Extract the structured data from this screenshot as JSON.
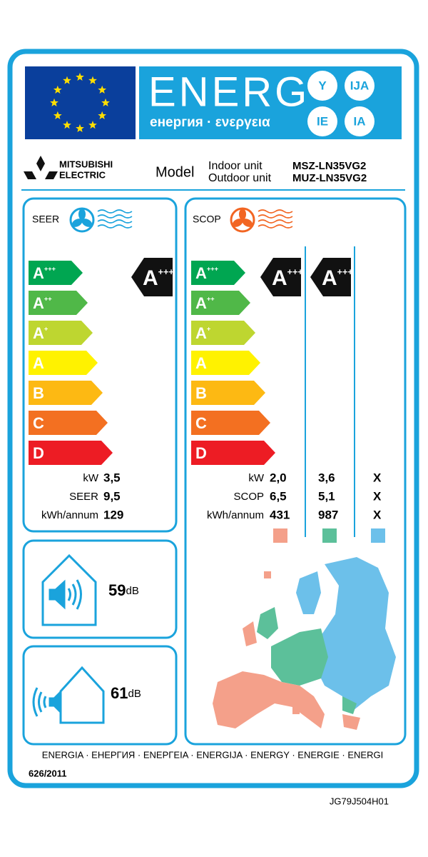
{
  "header": {
    "energy": "ENERG",
    "energy_subtitle": "енергия · ενεργεια",
    "suffixes": [
      "Y",
      "IJA",
      "IE",
      "IA"
    ]
  },
  "manufacturer": {
    "brand_line1": "MITSUBISHI",
    "brand_line2": "ELECTRIC"
  },
  "model": {
    "label": "Model",
    "indoor_label": "Indoor unit",
    "outdoor_label": "Outdoor unit",
    "indoor": "MSZ-LN35VG2",
    "outdoor": "MUZ-LN35VG2"
  },
  "efficiency_scale": [
    {
      "letter": "A",
      "sup": "+++"
    },
    {
      "letter": "A",
      "sup": "++"
    },
    {
      "letter": "A",
      "sup": "+"
    },
    {
      "letter": "A",
      "sup": ""
    },
    {
      "letter": "B",
      "sup": ""
    },
    {
      "letter": "C",
      "sup": ""
    },
    {
      "letter": "D",
      "sup": ""
    }
  ],
  "cooling": {
    "label": "SEER",
    "rating": {
      "letter": "A",
      "sup": "+++"
    },
    "rows": [
      {
        "label": "kW",
        "value": "3,5"
      },
      {
        "label": "SEER",
        "value": "9,5"
      },
      {
        "label": "kWh/annum",
        "value": "129"
      }
    ]
  },
  "heating": {
    "label": "SCOP",
    "ratings": [
      {
        "letter": "A",
        "sup": "+++"
      },
      {
        "letter": "A",
        "sup": "+++"
      }
    ],
    "rows": [
      {
        "label": "kW",
        "values": [
          "2,0",
          "3,6",
          "X"
        ]
      },
      {
        "label": "SCOP",
        "values": [
          "6,5",
          "5,1",
          "X"
        ]
      },
      {
        "label": "kWh/annum",
        "values": [
          "431",
          "987",
          "X"
        ]
      }
    ]
  },
  "noise": {
    "indoor": {
      "value": "59",
      "unit": "dB"
    },
    "outdoor": {
      "value": "61",
      "unit": "dB"
    }
  },
  "footer": {
    "languages": "ENERGIA · ЕНЕРГИЯ · ΕΝΕΡΓΕΙΑ · ENERGIJA · ENERGY · ENERGIE · ENERGI",
    "regulation": "626/2011",
    "code": "JG79J504H01"
  }
}
